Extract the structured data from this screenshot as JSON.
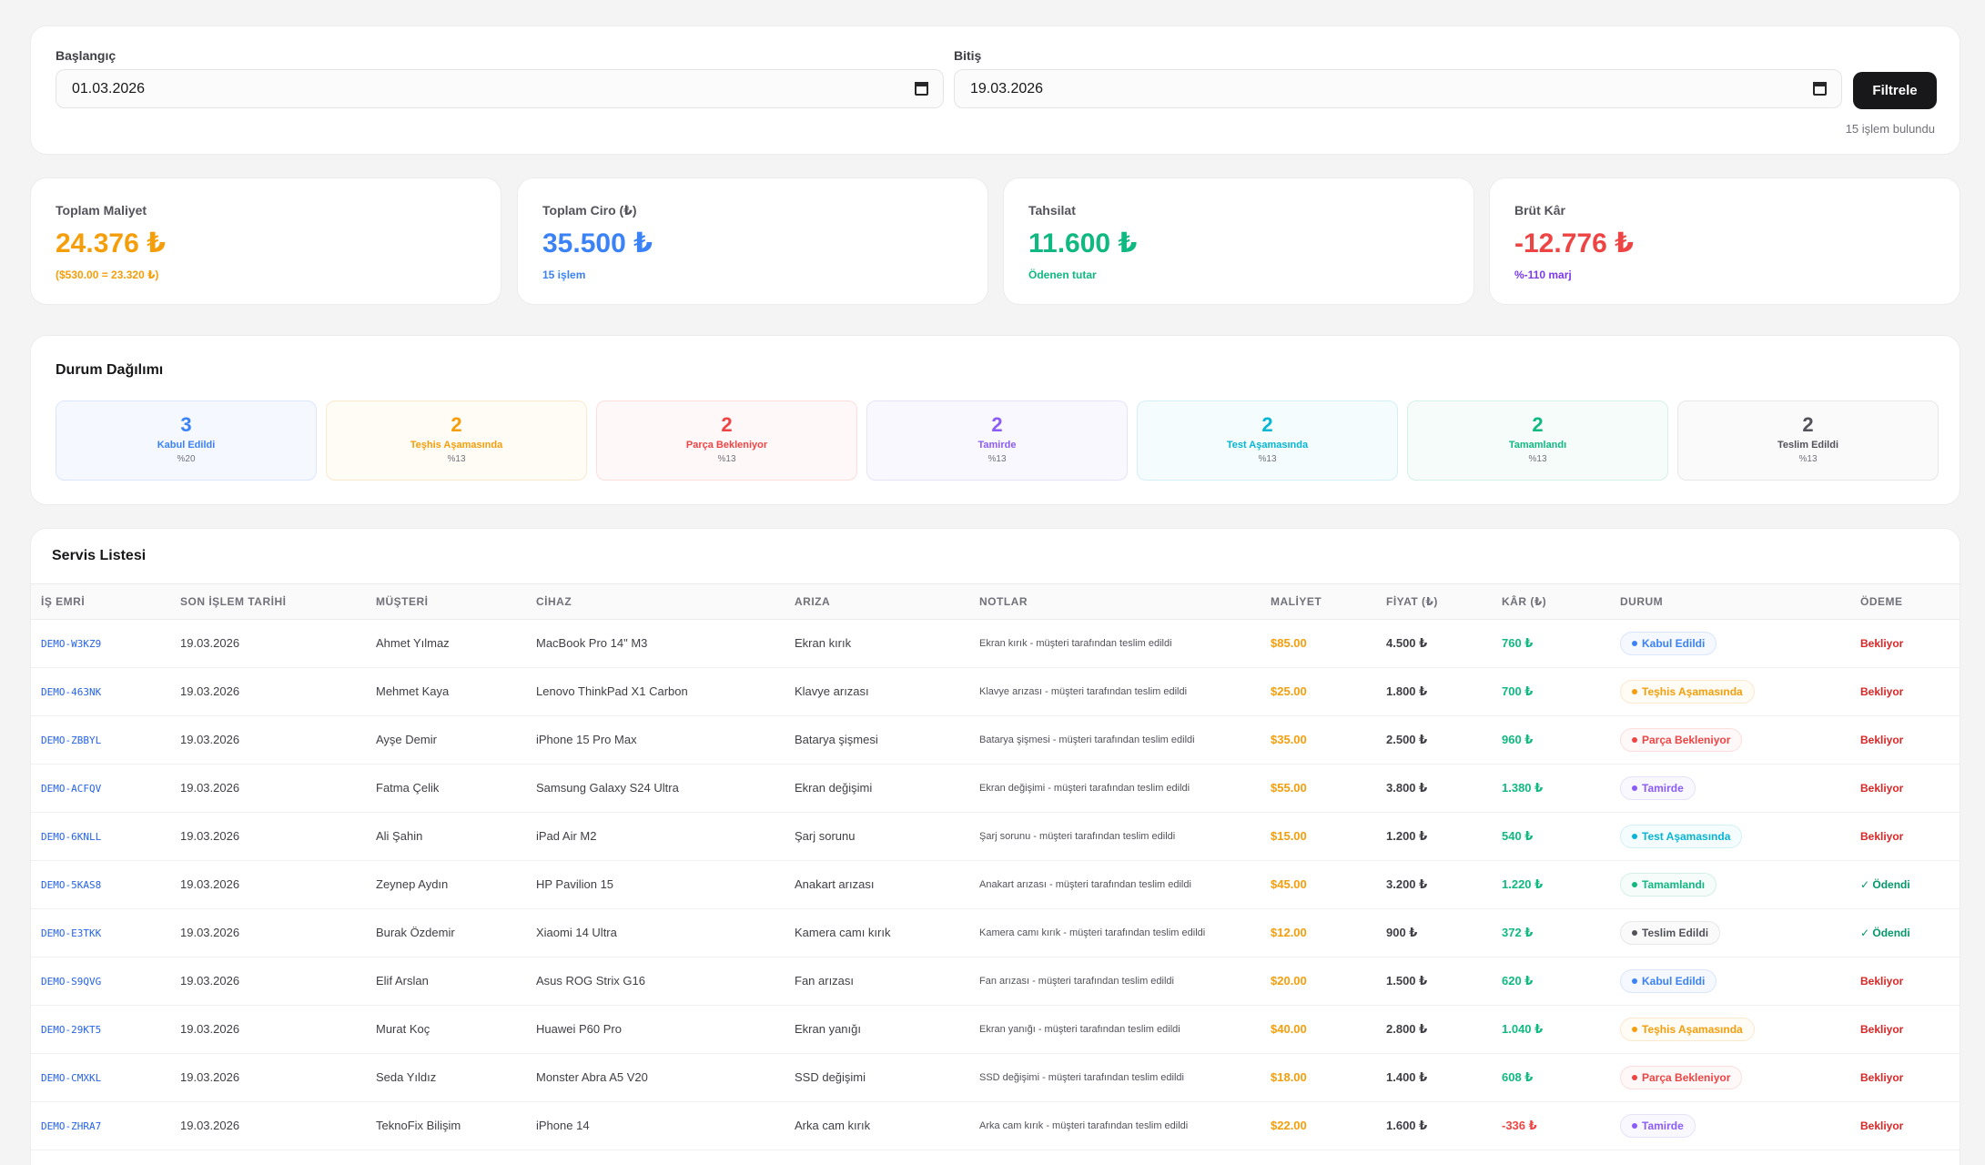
{
  "filter": {
    "start_label": "Başlangıç",
    "start_value": "01.03.2026",
    "end_label": "Bitiş",
    "end_value": "19.03.2026",
    "button_label": "Filtrele",
    "result_count": "15 işlem bulundu"
  },
  "stats": [
    {
      "label": "Toplam Maliyet",
      "value": "24.376 ₺",
      "sub": "($530.00 = 23.320 ₺)",
      "color": "#f59e0b"
    },
    {
      "label": "Toplam Ciro (₺)",
      "value": "35.500 ₺",
      "sub": "15 işlem",
      "color": "#3b82f6"
    },
    {
      "label": "Tahsilat",
      "value": "11.600 ₺",
      "sub": "Ödenen tutar",
      "color": "#10b981"
    },
    {
      "label": "Brüt Kâr",
      "value": "-12.776 ₺",
      "sub": "%-110 marj",
      "color": "#ef4444",
      "sub_color": "#7c3aed"
    }
  ],
  "distribution": {
    "title": "Durum Dağılımı",
    "items": [
      {
        "count": "3",
        "label": "Kabul Edildi",
        "pct": "%20",
        "color": "#3b82f6",
        "bg": "#f5f8ff",
        "border": "#dbe6fb"
      },
      {
        "count": "2",
        "label": "Teşhis Aşamasında",
        "pct": "%13",
        "color": "#f59e0b",
        "bg": "#fffbf5",
        "border": "#fbe9cf"
      },
      {
        "count": "2",
        "label": "Parça Bekleniyor",
        "pct": "%13",
        "color": "#ef4444",
        "bg": "#fef8f8",
        "border": "#fbdede"
      },
      {
        "count": "2",
        "label": "Tamirde",
        "pct": "%13",
        "color": "#8b5cf6",
        "bg": "#f9f8fe",
        "border": "#e6e2f9"
      },
      {
        "count": "2",
        "label": "Test Aşamasında",
        "pct": "%13",
        "color": "#06b6d4",
        "bg": "#f4fcfd",
        "border": "#d3f0f5"
      },
      {
        "count": "2",
        "label": "Tamamlandı",
        "pct": "%13",
        "color": "#10b981",
        "bg": "#f5fcf9",
        "border": "#d5f1e6"
      },
      {
        "count": "2",
        "label": "Teslim Edildi",
        "pct": "%13",
        "color": "#52525b",
        "bg": "#fafafa",
        "border": "#e7e7ea"
      }
    ]
  },
  "list": {
    "title": "Servis Listesi",
    "columns": [
      "İŞ EMRİ",
      "SON İŞLEM TARİHİ",
      "MÜŞTERİ",
      "CİHAZ",
      "ARIZA",
      "NOTLAR",
      "MALİYET",
      "FİYAT (₺)",
      "KÂR (₺)",
      "DURUM",
      "ÖDEME"
    ],
    "rows": [
      {
        "id": "DEMO-W3KZ9",
        "date": "19.03.2026",
        "customer": "Ahmet Yılmaz",
        "device": "MacBook Pro 14\" M3",
        "issue": "Ekran kırık",
        "note": "Ekran kırık - müşteri tarafından teslim edildi",
        "cost": "$85.00",
        "price": "4.500 ₺",
        "profit": "760 ₺",
        "profit_color": "#10b981",
        "status": "Kabul Edildi",
        "status_key": 0,
        "pay": "Bekliyor",
        "pay_color": "#dc2626"
      },
      {
        "id": "DEMO-463NK",
        "date": "19.03.2026",
        "customer": "Mehmet Kaya",
        "device": "Lenovo ThinkPad X1 Carbon",
        "issue": "Klavye arızası",
        "note": "Klavye arızası - müşteri tarafından teslim edildi",
        "cost": "$25.00",
        "price": "1.800 ₺",
        "profit": "700 ₺",
        "profit_color": "#10b981",
        "status": "Teşhis Aşamasında",
        "status_key": 1,
        "pay": "Bekliyor",
        "pay_color": "#dc2626"
      },
      {
        "id": "DEMO-ZBBYL",
        "date": "19.03.2026",
        "customer": "Ayşe Demir",
        "device": "iPhone 15 Pro Max",
        "issue": "Batarya şişmesi",
        "note": "Batarya şişmesi - müşteri tarafından teslim edildi",
        "cost": "$35.00",
        "price": "2.500 ₺",
        "profit": "960 ₺",
        "profit_color": "#10b981",
        "status": "Parça Bekleniyor",
        "status_key": 2,
        "pay": "Bekliyor",
        "pay_color": "#dc2626"
      },
      {
        "id": "DEMO-ACFQV",
        "date": "19.03.2026",
        "customer": "Fatma Çelik",
        "device": "Samsung Galaxy S24 Ultra",
        "issue": "Ekran değişimi",
        "note": "Ekran değişimi - müşteri tarafından teslim edildi",
        "cost": "$55.00",
        "price": "3.800 ₺",
        "profit": "1.380 ₺",
        "profit_color": "#10b981",
        "status": "Tamirde",
        "status_key": 3,
        "pay": "Bekliyor",
        "pay_color": "#dc2626"
      },
      {
        "id": "DEMO-6KNLL",
        "date": "19.03.2026",
        "customer": "Ali Şahin",
        "device": "iPad Air M2",
        "issue": "Şarj sorunu",
        "note": "Şarj sorunu - müşteri tarafından teslim edildi",
        "cost": "$15.00",
        "price": "1.200 ₺",
        "profit": "540 ₺",
        "profit_color": "#10b981",
        "status": "Test Aşamasında",
        "status_key": 4,
        "pay": "Bekliyor",
        "pay_color": "#dc2626"
      },
      {
        "id": "DEMO-5KAS8",
        "date": "19.03.2026",
        "customer": "Zeynep Aydın",
        "device": "HP Pavilion 15",
        "issue": "Anakart arızası",
        "note": "Anakart arızası - müşteri tarafından teslim edildi",
        "cost": "$45.00",
        "price": "3.200 ₺",
        "profit": "1.220 ₺",
        "profit_color": "#10b981",
        "status": "Tamamlandı",
        "status_key": 5,
        "pay": "✓ Ödendi",
        "pay_color": "#059669"
      },
      {
        "id": "DEMO-E3TKK",
        "date": "19.03.2026",
        "customer": "Burak Özdemir",
        "device": "Xiaomi 14 Ultra",
        "issue": "Kamera camı kırık",
        "note": "Kamera camı kırık - müşteri tarafından teslim edildi",
        "cost": "$12.00",
        "price": "900 ₺",
        "profit": "372 ₺",
        "profit_color": "#10b981",
        "status": "Teslim Edildi",
        "status_key": 6,
        "pay": "✓ Ödendi",
        "pay_color": "#059669"
      },
      {
        "id": "DEMO-S9QVG",
        "date": "19.03.2026",
        "customer": "Elif Arslan",
        "device": "Asus ROG Strix G16",
        "issue": "Fan arızası",
        "note": "Fan arızası - müşteri tarafından teslim edildi",
        "cost": "$20.00",
        "price": "1.500 ₺",
        "profit": "620 ₺",
        "profit_color": "#10b981",
        "status": "Kabul Edildi",
        "status_key": 0,
        "pay": "Bekliyor",
        "pay_color": "#dc2626"
      },
      {
        "id": "DEMO-29KT5",
        "date": "19.03.2026",
        "customer": "Murat Koç",
        "device": "Huawei P60 Pro",
        "issue": "Ekran yanığı",
        "note": "Ekran yanığı - müşteri tarafından teslim edildi",
        "cost": "$40.00",
        "price": "2.800 ₺",
        "profit": "1.040 ₺",
        "profit_color": "#10b981",
        "status": "Teşhis Aşamasında",
        "status_key": 1,
        "pay": "Bekliyor",
        "pay_color": "#dc2626"
      },
      {
        "id": "DEMO-CMXKL",
        "date": "19.03.2026",
        "customer": "Seda Yıldız",
        "device": "Monster Abra A5 V20",
        "issue": "SSD değişimi",
        "note": "SSD değişimi - müşteri tarafından teslim edildi",
        "cost": "$18.00",
        "price": "1.400 ₺",
        "profit": "608 ₺",
        "profit_color": "#10b981",
        "status": "Parça Bekleniyor",
        "status_key": 2,
        "pay": "Bekliyor",
        "pay_color": "#dc2626"
      },
      {
        "id": "DEMO-ZHRA7",
        "date": "19.03.2026",
        "customer": "TeknoFix Bilişim",
        "device": "iPhone 14",
        "issue": "Arka cam kırık",
        "note": "Arka cam kırık - müşteri tarafından teslim edildi",
        "cost": "$22.00",
        "price": "1.600 ₺",
        "profit": "-336 ₺",
        "profit_color": "#ef4444",
        "status": "Tamirde",
        "status_key": 3,
        "pay": "Bekliyor",
        "pay_color": "#dc2626"
      }
    ]
  }
}
